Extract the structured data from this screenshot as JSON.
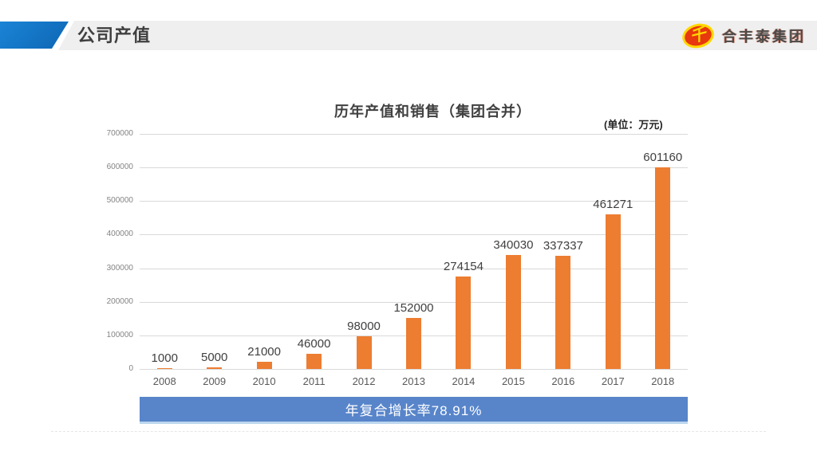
{
  "header": {
    "title": "公司产值",
    "logo": {
      "text": "合丰泰集团",
      "glyph": "千",
      "ellipse_color": "#E8380D",
      "ring_color": "#FFD800"
    }
  },
  "chart_data": {
    "type": "bar",
    "title": "历年产值和销售（集团合并）",
    "unit": "(单位：万元)",
    "categories": [
      "2008",
      "2009",
      "2010",
      "2011",
      "2012",
      "2013",
      "2014",
      "2015",
      "2016",
      "2017",
      "2018"
    ],
    "values": [
      1000,
      5000,
      21000,
      46000,
      98000,
      152000,
      274154,
      340030,
      337337,
      461271,
      601160
    ],
    "xlabel": "",
    "ylabel": "",
    "ylim": [
      0,
      700000
    ],
    "yticks": [
      0,
      100000,
      200000,
      300000,
      400000,
      500000,
      600000,
      700000
    ],
    "grid": true,
    "legend": false,
    "bar_color": "#ED7D31",
    "label_color": "#404040"
  },
  "footer": {
    "cagr_label": "年复合增长率78.91%",
    "banner_color": "#5885CA"
  }
}
